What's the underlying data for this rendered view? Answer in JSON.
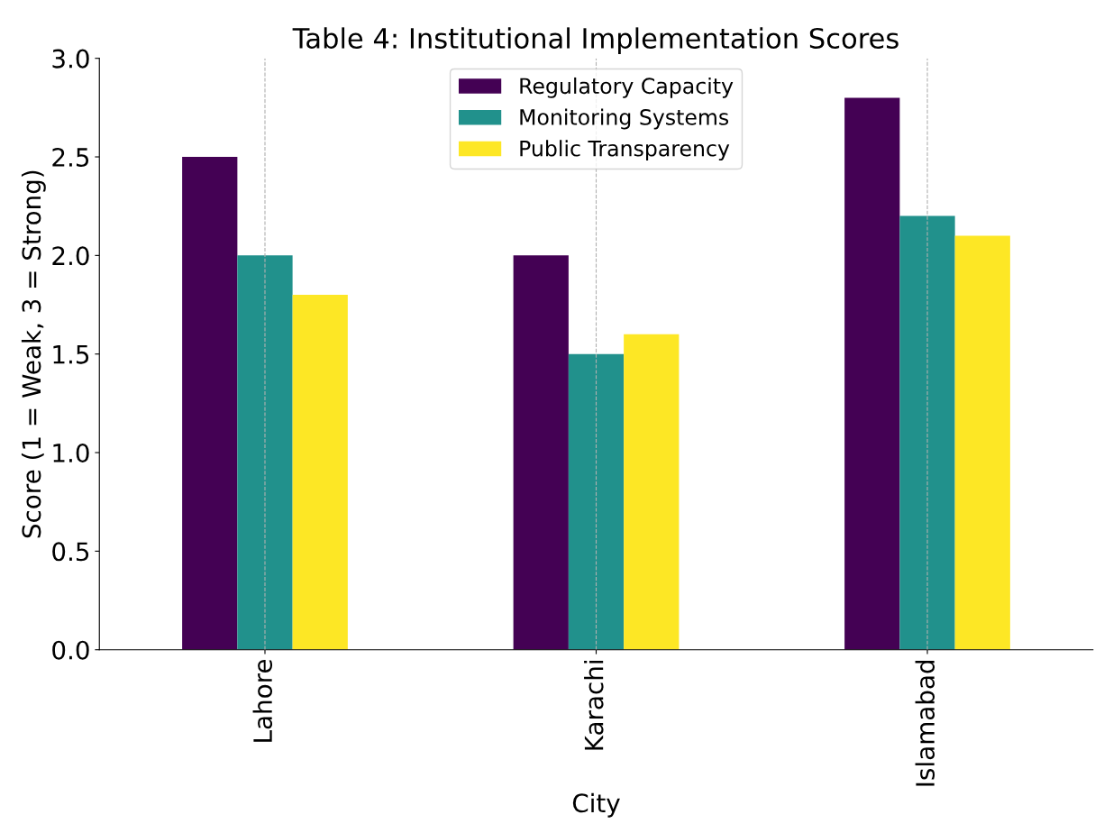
{
  "chart_data": {
    "type": "bar",
    "title": "Table 4: Institutional Implementation Scores",
    "xlabel": "City",
    "ylabel": "Score (1 = Weak, 3 = Strong)",
    "categories": [
      "Lahore",
      "Karachi",
      "Islamabad"
    ],
    "series": [
      {
        "name": "Regulatory Capacity",
        "color": "#440154",
        "values": [
          2.5,
          2.0,
          2.8
        ]
      },
      {
        "name": "Monitoring Systems",
        "color": "#21918c",
        "values": [
          2.0,
          1.5,
          2.2
        ]
      },
      {
        "name": "Public Transparency",
        "color": "#fde725",
        "values": [
          1.8,
          1.6,
          2.1
        ]
      }
    ],
    "ylim": [
      0,
      3.0
    ],
    "yticks": [
      {
        "value": 0,
        "label": "0.0"
      },
      {
        "value": 0.5,
        "label": "0.5"
      },
      {
        "value": 1.0,
        "label": "1.0"
      },
      {
        "value": 1.5,
        "label": "1.5"
      },
      {
        "value": 2.0,
        "label": "2.0"
      },
      {
        "value": 2.5,
        "label": "2.5"
      },
      {
        "value": 3.0,
        "label": "3.0"
      }
    ],
    "grid": "x",
    "legend": "top center"
  }
}
